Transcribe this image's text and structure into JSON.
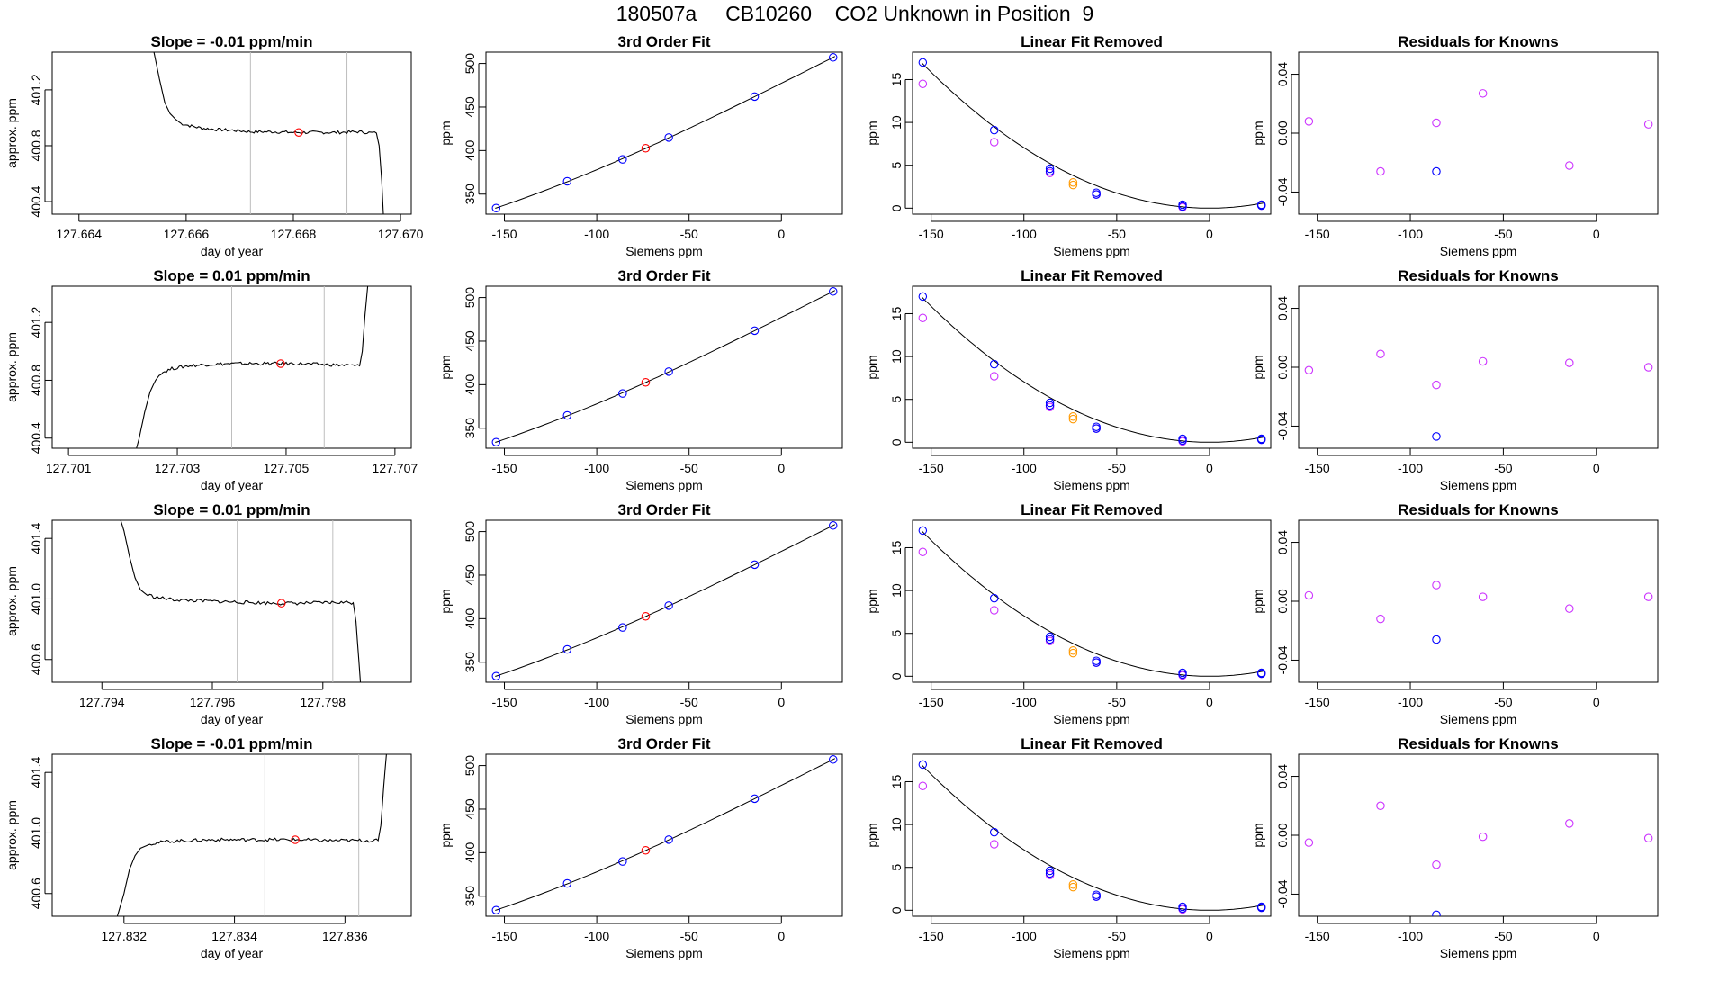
{
  "page_title": "180507a     CB10260    CO2 Unknown in Position  9",
  "colors": {
    "known": "#0000ff",
    "known_offset": "#cc33ff",
    "unknown": "#ff0000",
    "unknown_offset": "#ff9900",
    "line": "#000000",
    "vline": "#bebebe"
  },
  "rows": [
    {
      "slope_title": "Slope =  -0.01  ppm/min",
      "timeseries": {
        "xlabel": "day of year",
        "ylabel": "approx. ppm",
        "xlim": [
          127.6635,
          127.6702
        ],
        "ylim": [
          400.31,
          401.47
        ],
        "xticks": [
          "127.664",
          "127.666",
          "127.668",
          "127.670"
        ],
        "yticks": [
          "400.4",
          "400.8",
          "401.2"
        ],
        "vlines": [
          127.6672,
          127.669
        ],
        "marker": {
          "x": 127.6681,
          "y": 400.895
        },
        "shape": "fall",
        "line": [
          [
            127.66539,
            401.5
          ],
          [
            127.6654,
            401.47
          ],
          [
            127.6655,
            401.28
          ],
          [
            127.6656,
            401.11
          ],
          [
            127.6657,
            401.03
          ],
          [
            127.6658,
            400.99
          ],
          [
            127.6659,
            400.96
          ],
          [
            127.6661,
            400.94
          ],
          [
            127.6663,
            400.925
          ],
          [
            127.6666,
            400.915
          ],
          [
            127.6669,
            400.91
          ],
          [
            127.6672,
            400.9
          ],
          [
            127.6676,
            400.9
          ],
          [
            127.668,
            400.895
          ],
          [
            127.6684,
            400.895
          ],
          [
            127.6688,
            400.895
          ],
          [
            127.6692,
            400.9
          ],
          [
            127.66955,
            400.89
          ],
          [
            127.6696,
            400.8
          ],
          [
            127.66965,
            400.55
          ],
          [
            127.66968,
            400.31
          ]
        ]
      },
      "residual_knowns": [
        {
          "x": -154.5,
          "y": 0.008,
          "c": "known_offset"
        },
        {
          "x": -116.0,
          "y": -0.026,
          "c": "known_offset"
        },
        {
          "x": -86.0,
          "y": 0.007,
          "c": "known_offset"
        },
        {
          "x": -86.0,
          "y": -0.026,
          "c": "known"
        },
        {
          "x": -61.0,
          "y": 0.027,
          "c": "known_offset"
        },
        {
          "x": -14.5,
          "y": -0.022,
          "c": "known_offset"
        },
        {
          "x": 28.0,
          "y": 0.006,
          "c": "known_offset"
        }
      ]
    },
    {
      "slope_title": "Slope =  0.01  ppm/min",
      "timeseries": {
        "xlabel": "day of year",
        "ylabel": "approx. ppm",
        "xlim": [
          127.7007,
          127.7073
        ],
        "ylim": [
          400.33,
          401.45
        ],
        "xticks": [
          "127.701",
          "127.703",
          "127.705",
          "127.707"
        ],
        "yticks": [
          "400.4",
          "400.8",
          "401.2"
        ],
        "vlines": [
          127.704,
          127.7057
        ],
        "marker": {
          "x": 127.7049,
          "y": 400.915
        },
        "shape": "rise",
        "line": [
          [
            127.70225,
            400.33
          ],
          [
            127.7023,
            400.4
          ],
          [
            127.7024,
            400.58
          ],
          [
            127.7025,
            400.72
          ],
          [
            127.7026,
            400.8
          ],
          [
            127.7027,
            400.85
          ],
          [
            127.7029,
            400.88
          ],
          [
            127.7032,
            400.9
          ],
          [
            127.7036,
            400.91
          ],
          [
            127.704,
            400.915
          ],
          [
            127.7044,
            400.915
          ],
          [
            127.7048,
            400.915
          ],
          [
            127.7052,
            400.915
          ],
          [
            127.7056,
            400.91
          ],
          [
            127.706,
            400.905
          ],
          [
            127.70635,
            400.9
          ],
          [
            127.7064,
            401.0
          ],
          [
            127.70645,
            401.25
          ],
          [
            127.7065,
            401.45
          ]
        ]
      },
      "residual_knowns": [
        {
          "x": -154.5,
          "y": -0.002,
          "c": "known_offset"
        },
        {
          "x": -116.0,
          "y": 0.009,
          "c": "known_offset"
        },
        {
          "x": -86.0,
          "y": -0.012,
          "c": "known_offset"
        },
        {
          "x": -86.0,
          "y": -0.047,
          "c": "known"
        },
        {
          "x": -61.0,
          "y": 0.004,
          "c": "known_offset"
        },
        {
          "x": -14.5,
          "y": 0.003,
          "c": "known_offset"
        },
        {
          "x": 28.0,
          "y": 0.0,
          "c": "known_offset"
        }
      ]
    },
    {
      "slope_title": "Slope =  0.01  ppm/min",
      "timeseries": {
        "xlabel": "day of year",
        "ylabel": "approx. ppm",
        "xlim": [
          127.7931,
          127.7996
        ],
        "ylim": [
          400.45,
          401.52
        ],
        "xticks": [
          "127.794",
          "127.796",
          "127.798"
        ],
        "yticks": [
          "400.6",
          "401.0",
          "401.4"
        ],
        "vlines": [
          127.79645,
          127.79818
        ],
        "marker": {
          "x": 127.79725,
          "y": 400.972
        },
        "shape": "fall",
        "line": [
          [
            127.79434,
            401.52
          ],
          [
            127.7944,
            401.45
          ],
          [
            127.7945,
            401.28
          ],
          [
            127.7946,
            401.14
          ],
          [
            127.7947,
            401.06
          ],
          [
            127.7948,
            401.03
          ],
          [
            127.795,
            401.01
          ],
          [
            127.7953,
            400.995
          ],
          [
            127.7956,
            400.99
          ],
          [
            127.796,
            400.985
          ],
          [
            127.7964,
            400.98
          ],
          [
            127.7968,
            400.975
          ],
          [
            127.7972,
            400.972
          ],
          [
            127.7976,
            400.972
          ],
          [
            127.798,
            400.975
          ],
          [
            127.7984,
            400.978
          ],
          [
            127.79855,
            400.975
          ],
          [
            127.7986,
            400.85
          ],
          [
            127.79865,
            400.6
          ],
          [
            127.79868,
            400.45
          ]
        ]
      },
      "residual_knowns": [
        {
          "x": -154.5,
          "y": 0.004,
          "c": "known_offset"
        },
        {
          "x": -116.0,
          "y": -0.012,
          "c": "known_offset"
        },
        {
          "x": -86.0,
          "y": 0.011,
          "c": "known_offset"
        },
        {
          "x": -86.0,
          "y": -0.026,
          "c": "known"
        },
        {
          "x": -61.0,
          "y": 0.003,
          "c": "known_offset"
        },
        {
          "x": -14.5,
          "y": -0.005,
          "c": "known_offset"
        },
        {
          "x": 28.0,
          "y": 0.003,
          "c": "known_offset"
        }
      ]
    },
    {
      "slope_title": "Slope =  -0.01  ppm/min",
      "timeseries": {
        "xlabel": "day of year",
        "ylabel": "approx. ppm",
        "xlim": [
          127.8307,
          127.8372
        ],
        "ylim": [
          400.45,
          401.52
        ],
        "xticks": [
          "127.832",
          "127.834",
          "127.836"
        ],
        "yticks": [
          "400.6",
          "401.0",
          "401.4"
        ],
        "vlines": [
          127.83455,
          127.83625
        ],
        "marker": {
          "x": 127.8351,
          "y": 400.955
        },
        "shape": "rise",
        "line": [
          [
            127.83188,
            400.45
          ],
          [
            127.832,
            400.6
          ],
          [
            127.8321,
            400.76
          ],
          [
            127.8322,
            400.85
          ],
          [
            127.8323,
            400.9
          ],
          [
            127.8325,
            400.93
          ],
          [
            127.8328,
            400.945
          ],
          [
            127.8332,
            400.95
          ],
          [
            127.8336,
            400.955
          ],
          [
            127.834,
            400.955
          ],
          [
            127.8344,
            400.955
          ],
          [
            127.8348,
            400.955
          ],
          [
            127.8352,
            400.955
          ],
          [
            127.8356,
            400.95
          ],
          [
            127.836,
            400.95
          ],
          [
            127.8366,
            400.95
          ],
          [
            127.83665,
            401.05
          ],
          [
            127.8367,
            401.3
          ],
          [
            127.83675,
            401.52
          ]
        ]
      },
      "residual_knowns": [
        {
          "x": -154.5,
          "y": -0.005,
          "c": "known_offset"
        },
        {
          "x": -116.0,
          "y": 0.02,
          "c": "known_offset"
        },
        {
          "x": -86.0,
          "y": -0.02,
          "c": "known_offset"
        },
        {
          "x": -86.0,
          "y": -0.054,
          "c": "known"
        },
        {
          "x": -61.0,
          "y": -0.001,
          "c": "known_offset"
        },
        {
          "x": -14.5,
          "y": 0.008,
          "c": "known_offset"
        },
        {
          "x": 28.0,
          "y": -0.002,
          "c": "known_offset"
        }
      ]
    }
  ],
  "fit_panel": {
    "title": "3rd Order Fit",
    "xlabel": "Siemens ppm",
    "ylabel": "ppm",
    "xlim": [
      -160,
      33
    ],
    "ylim": [
      327,
      513
    ],
    "xticks": [
      -150,
      -100,
      -50,
      0
    ],
    "yticks": [
      350,
      400,
      450,
      500
    ],
    "knowns": [
      [
        -154.5,
        334
      ],
      [
        -116.0,
        364.7
      ],
      [
        -86.0,
        389.9
      ],
      [
        -61.0,
        415.0
      ],
      [
        -14.5,
        462.0
      ],
      [
        28.0,
        507.0
      ]
    ],
    "unknown": [
      -73.5,
      402.7
    ]
  },
  "linear_removed_panel": {
    "title": "Linear Fit Removed",
    "xlabel": "Siemens ppm",
    "ylabel": "ppm",
    "xlim": [
      -160,
      33
    ],
    "ylim": [
      -0.7,
      18.2
    ],
    "xticks": [
      -150,
      -100,
      -50,
      0
    ],
    "yticks": [
      0,
      5,
      10,
      15
    ],
    "knowns": [
      [
        -154.5,
        17.0
      ],
      [
        -116.0,
        9.1
      ],
      [
        -86.0,
        4.6
      ],
      [
        -86.0,
        4.3
      ],
      [
        -61.0,
        1.8
      ],
      [
        -61.0,
        1.6
      ],
      [
        -14.5,
        0.4
      ],
      [
        -14.5,
        0.2
      ],
      [
        28.0,
        0.3
      ],
      [
        28.0,
        0.4
      ]
    ],
    "knowns_offset": [
      [
        -154.5,
        14.5
      ],
      [
        -116.0,
        7.7
      ],
      [
        -86.0,
        4.1
      ],
      [
        -61.0,
        1.6
      ],
      [
        -14.5,
        0.1
      ],
      [
        28.0,
        0.3
      ]
    ],
    "unknown": [
      -73.5,
      3.0
    ],
    "unknown_offset": [
      -73.5,
      2.7
    ]
  },
  "residual_panel": {
    "title": "Residuals for Knowns",
    "xlabel": "Siemens ppm",
    "ylabel": "ppm",
    "xlim": [
      -160,
      33
    ],
    "ylim": [
      -0.055,
      0.055
    ],
    "xticks": [
      -150,
      -100,
      -50,
      0
    ],
    "yticks": [
      "-0.04",
      "0.00",
      "0.04"
    ]
  },
  "chart_data": [
    {
      "type": "line",
      "title": "Slope =  -0.01  ppm/min",
      "xlabel": "day of year",
      "ylabel": "approx. ppm",
      "xlim": [
        127.6635,
        127.6702
      ],
      "ylim": [
        400.31,
        401.47
      ]
    },
    {
      "type": "line",
      "title": "Slope =  0.01  ppm/min",
      "xlabel": "day of year",
      "ylabel": "approx. ppm",
      "xlim": [
        127.7007,
        127.7073
      ],
      "ylim": [
        400.33,
        401.45
      ]
    },
    {
      "type": "line",
      "title": "Slope =  0.01  ppm/min",
      "xlabel": "day of year",
      "ylabel": "approx. ppm",
      "xlim": [
        127.7931,
        127.7996
      ],
      "ylim": [
        400.45,
        401.52
      ]
    },
    {
      "type": "line",
      "title": "Slope =  -0.01  ppm/min",
      "xlabel": "day of year",
      "ylabel": "approx. ppm",
      "xlim": [
        127.8307,
        127.8372
      ],
      "ylim": [
        400.45,
        401.52
      ]
    },
    {
      "type": "scatter",
      "title": "3rd Order Fit",
      "xlabel": "Siemens ppm",
      "ylabel": "ppm",
      "note": "repeated in 4 rows",
      "x": [
        -154.5,
        -116.0,
        -86.0,
        -61.0,
        -14.5,
        28.0
      ],
      "y": [
        334,
        364.7,
        389.9,
        415.0,
        462.0,
        507.0
      ],
      "unknown": {
        "x": -73.5,
        "y": 402.7
      }
    },
    {
      "type": "scatter",
      "title": "Linear Fit Removed",
      "xlabel": "Siemens ppm",
      "ylabel": "ppm",
      "note": "repeated in 4 rows",
      "x": [
        -154.5,
        -116.0,
        -86.0,
        -61.0,
        -14.5,
        28.0
      ],
      "y": [
        17.0,
        9.1,
        4.5,
        1.7,
        0.3,
        0.3
      ],
      "unknown": {
        "x": -73.5,
        "y": 3.0
      }
    },
    {
      "type": "scatter",
      "title": "Residuals for Knowns",
      "xlabel": "Siemens ppm",
      "ylabel": "ppm",
      "ylim": [
        -0.055,
        0.055
      ]
    }
  ]
}
